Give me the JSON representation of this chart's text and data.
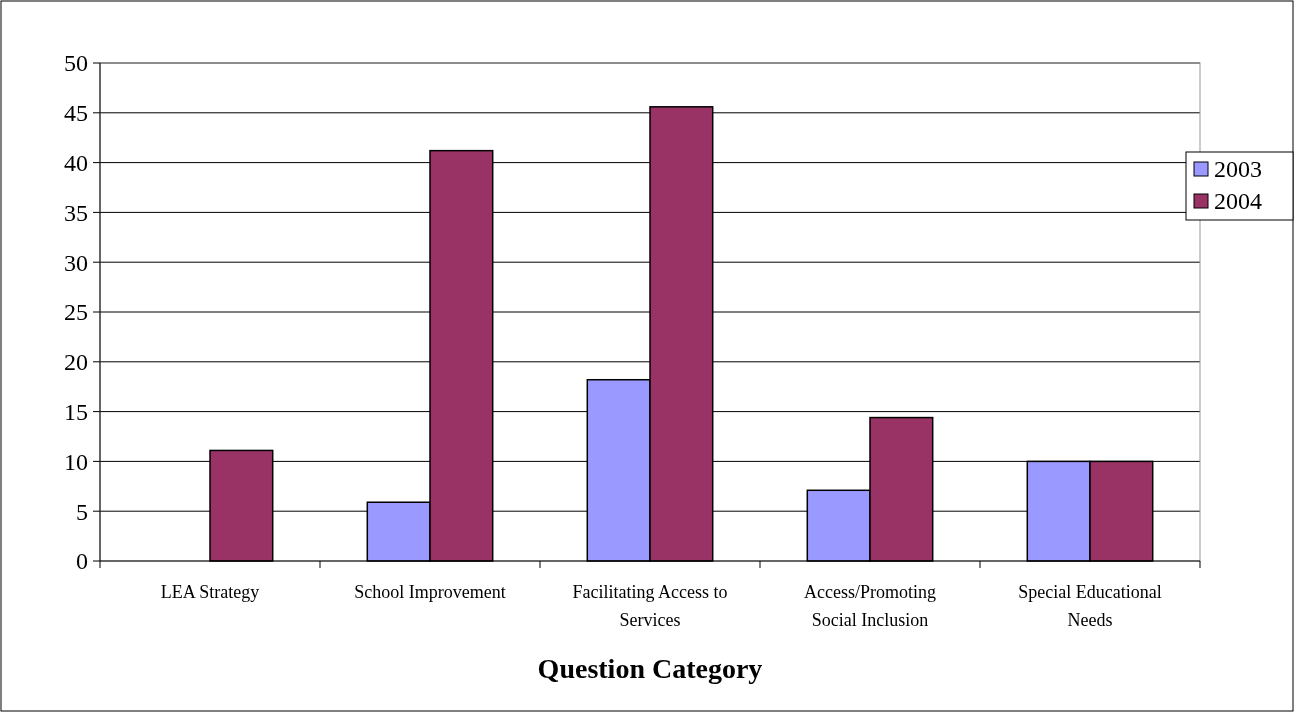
{
  "chart_data": {
    "type": "bar",
    "xlabel": "Question Category",
    "categories": [
      "LEA Strategy",
      "School Improvement",
      "Facilitating Access to Services",
      "Access/Promoting Social Inclusion",
      "Special Educational Needs"
    ],
    "series": [
      {
        "name": "2003",
        "color": "#9999ff",
        "values": [
          null,
          5.9,
          18.2,
          7.1,
          10
        ]
      },
      {
        "name": "2004",
        "color": "#993366",
        "values": [
          11.1,
          41.2,
          45.6,
          14.4,
          10
        ]
      }
    ],
    "ylim": [
      0,
      50
    ],
    "yticks": [
      0,
      5,
      10,
      15,
      20,
      25,
      30,
      35,
      40,
      45,
      50
    ],
    "grid": "y",
    "legend": "right"
  }
}
